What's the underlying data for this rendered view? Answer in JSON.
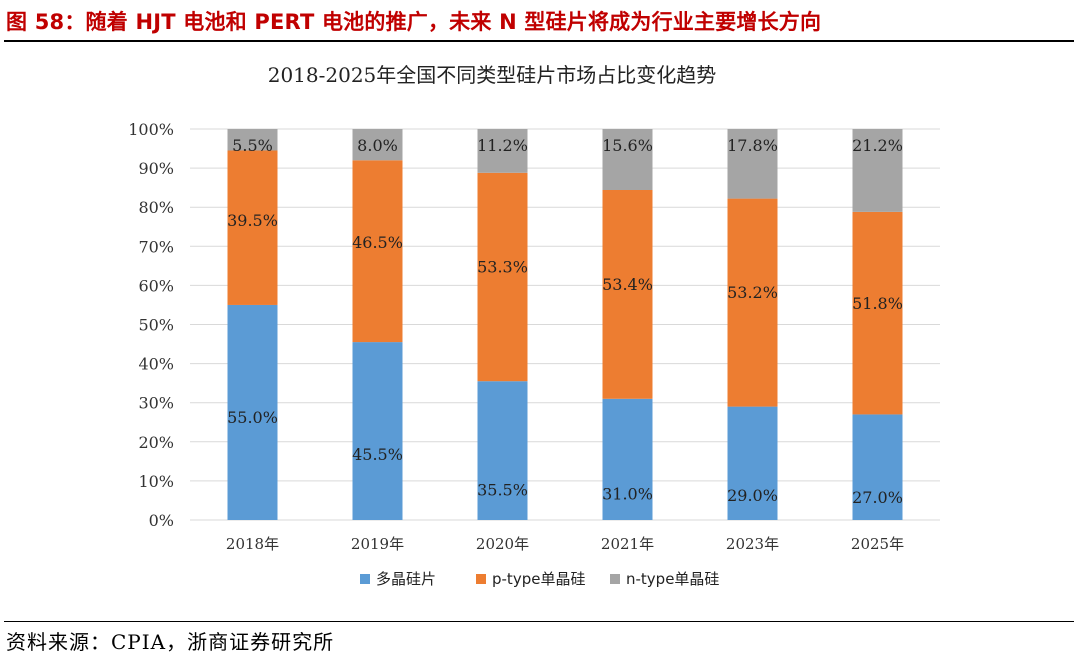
{
  "figure": {
    "caption": "图 58：随着 HJT 电池和 PERT 电池的推广，未来 N 型硅片将成为行业主要增长方向",
    "source": "资料来源：CPIA，浙商证券研究所"
  },
  "colors": {
    "caption": "#c00000",
    "multi": "#5b9bd5",
    "ptype": "#ed7d31",
    "ntype": "#a5a5a5",
    "grid": "#d9d9d9"
  },
  "chart_data": {
    "type": "bar",
    "stacked": true,
    "title": "2018-2025年全国不同类型硅片市场占比变化趋势",
    "xlabel": "",
    "ylabel": "",
    "ylim": [
      0,
      100
    ],
    "yticks": [
      "0%",
      "10%",
      "20%",
      "30%",
      "40%",
      "50%",
      "60%",
      "70%",
      "80%",
      "90%",
      "100%"
    ],
    "grid": true,
    "legend_position": "bottom",
    "categories": [
      "2018年",
      "2019年",
      "2020年",
      "2021年",
      "2023年",
      "2025年"
    ],
    "series": [
      {
        "name": "多晶硅片",
        "color": "#5b9bd5",
        "values": [
          55.0,
          45.5,
          35.5,
          31.0,
          29.0,
          27.0
        ],
        "labels": [
          "55.0%",
          "45.5%",
          "35.5%",
          "31.0%",
          "29.0%",
          "27.0%"
        ]
      },
      {
        "name": "p-type单晶硅",
        "color": "#ed7d31",
        "values": [
          39.5,
          46.5,
          53.3,
          53.4,
          53.2,
          51.8
        ],
        "labels": [
          "39.5%",
          "46.5%",
          "53.3%",
          "53.4%",
          "53.2%",
          "51.8%"
        ]
      },
      {
        "name": "n-type单晶硅",
        "color": "#a5a5a5",
        "values": [
          5.5,
          8.0,
          11.2,
          15.6,
          17.8,
          21.2
        ],
        "labels": [
          "5.5%",
          "8.0%",
          "11.2%",
          "15.6%",
          "17.8%",
          "21.2%"
        ]
      }
    ]
  }
}
